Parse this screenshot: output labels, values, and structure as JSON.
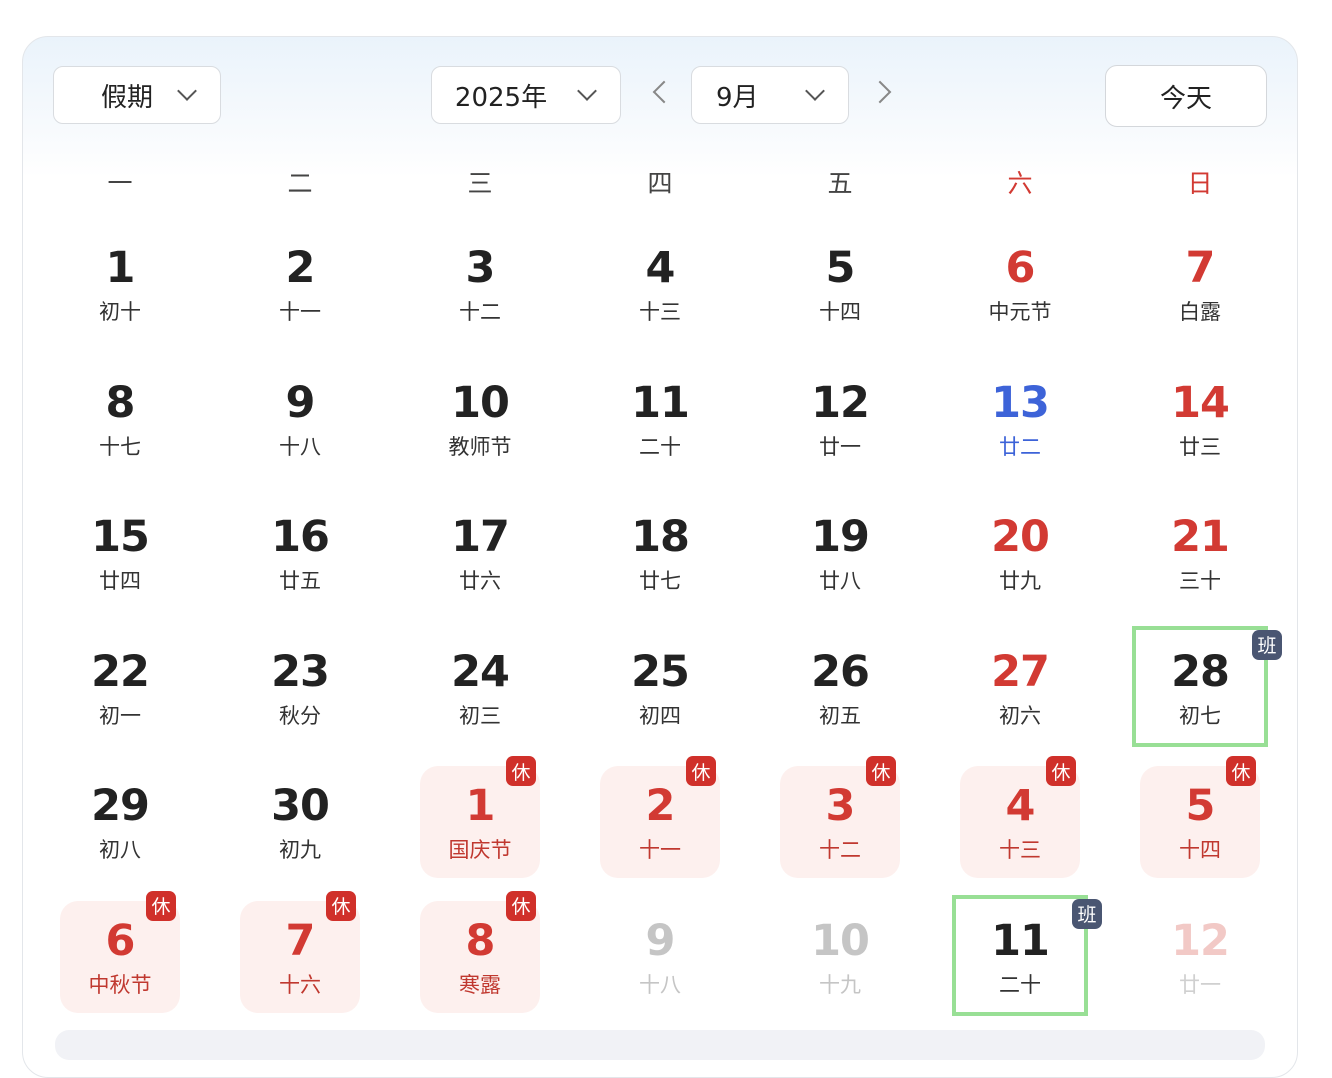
{
  "header": {
    "mode_select": {
      "value": "假期"
    },
    "year_select": {
      "value": "2025年"
    },
    "month_select": {
      "value": "9月"
    },
    "today_button": "今天"
  },
  "weekdays": [
    "一",
    "二",
    "三",
    "四",
    "五",
    "六",
    "日"
  ],
  "colors": {
    "holiday_red": "#d23a33",
    "rest_badge": "#d0302a",
    "work_badge": "#4a5672",
    "work_border": "#98df95",
    "selected_blue": "#3d63d8"
  },
  "badges": {
    "rest": "休",
    "work": "班"
  },
  "days": [
    {
      "day": "1",
      "lunar": "初十",
      "type": "normal"
    },
    {
      "day": "2",
      "lunar": "十一",
      "type": "normal"
    },
    {
      "day": "3",
      "lunar": "十二",
      "type": "normal"
    },
    {
      "day": "4",
      "lunar": "十三",
      "type": "normal"
    },
    {
      "day": "5",
      "lunar": "十四",
      "type": "normal"
    },
    {
      "day": "6",
      "lunar": "中元节",
      "type": "weekend"
    },
    {
      "day": "7",
      "lunar": "白露",
      "type": "weekend"
    },
    {
      "day": "8",
      "lunar": "十七",
      "type": "normal"
    },
    {
      "day": "9",
      "lunar": "十八",
      "type": "normal"
    },
    {
      "day": "10",
      "lunar": "教师节",
      "type": "normal"
    },
    {
      "day": "11",
      "lunar": "二十",
      "type": "normal"
    },
    {
      "day": "12",
      "lunar": "廿一",
      "type": "normal"
    },
    {
      "day": "13",
      "lunar": "廿二",
      "type": "blue"
    },
    {
      "day": "14",
      "lunar": "廿三",
      "type": "weekend"
    },
    {
      "day": "15",
      "lunar": "廿四",
      "type": "normal"
    },
    {
      "day": "16",
      "lunar": "廿五",
      "type": "normal"
    },
    {
      "day": "17",
      "lunar": "廿六",
      "type": "normal"
    },
    {
      "day": "18",
      "lunar": "廿七",
      "type": "normal"
    },
    {
      "day": "19",
      "lunar": "廿八",
      "type": "normal"
    },
    {
      "day": "20",
      "lunar": "廿九",
      "type": "weekend"
    },
    {
      "day": "21",
      "lunar": "三十",
      "type": "weekend"
    },
    {
      "day": "22",
      "lunar": "初一",
      "type": "normal"
    },
    {
      "day": "23",
      "lunar": "秋分",
      "type": "normal"
    },
    {
      "day": "24",
      "lunar": "初三",
      "type": "normal"
    },
    {
      "day": "25",
      "lunar": "初四",
      "type": "normal"
    },
    {
      "day": "26",
      "lunar": "初五",
      "type": "normal"
    },
    {
      "day": "27",
      "lunar": "初六",
      "type": "weekend"
    },
    {
      "day": "28",
      "lunar": "初七",
      "type": "work"
    },
    {
      "day": "29",
      "lunar": "初八",
      "type": "normal"
    },
    {
      "day": "30",
      "lunar": "初九",
      "type": "normal"
    },
    {
      "day": "1",
      "lunar": "国庆节",
      "type": "holiday"
    },
    {
      "day": "2",
      "lunar": "十一",
      "type": "holiday"
    },
    {
      "day": "3",
      "lunar": "十二",
      "type": "holiday"
    },
    {
      "day": "4",
      "lunar": "十三",
      "type": "holiday"
    },
    {
      "day": "5",
      "lunar": "十四",
      "type": "holiday"
    },
    {
      "day": "6",
      "lunar": "中秋节",
      "type": "holiday"
    },
    {
      "day": "7",
      "lunar": "十六",
      "type": "holiday"
    },
    {
      "day": "8",
      "lunar": "寒露",
      "type": "holiday"
    },
    {
      "day": "9",
      "lunar": "十八",
      "type": "other"
    },
    {
      "day": "10",
      "lunar": "十九",
      "type": "other"
    },
    {
      "day": "11",
      "lunar": "二十",
      "type": "work"
    },
    {
      "day": "12",
      "lunar": "廿一",
      "type": "otherweekend"
    }
  ]
}
